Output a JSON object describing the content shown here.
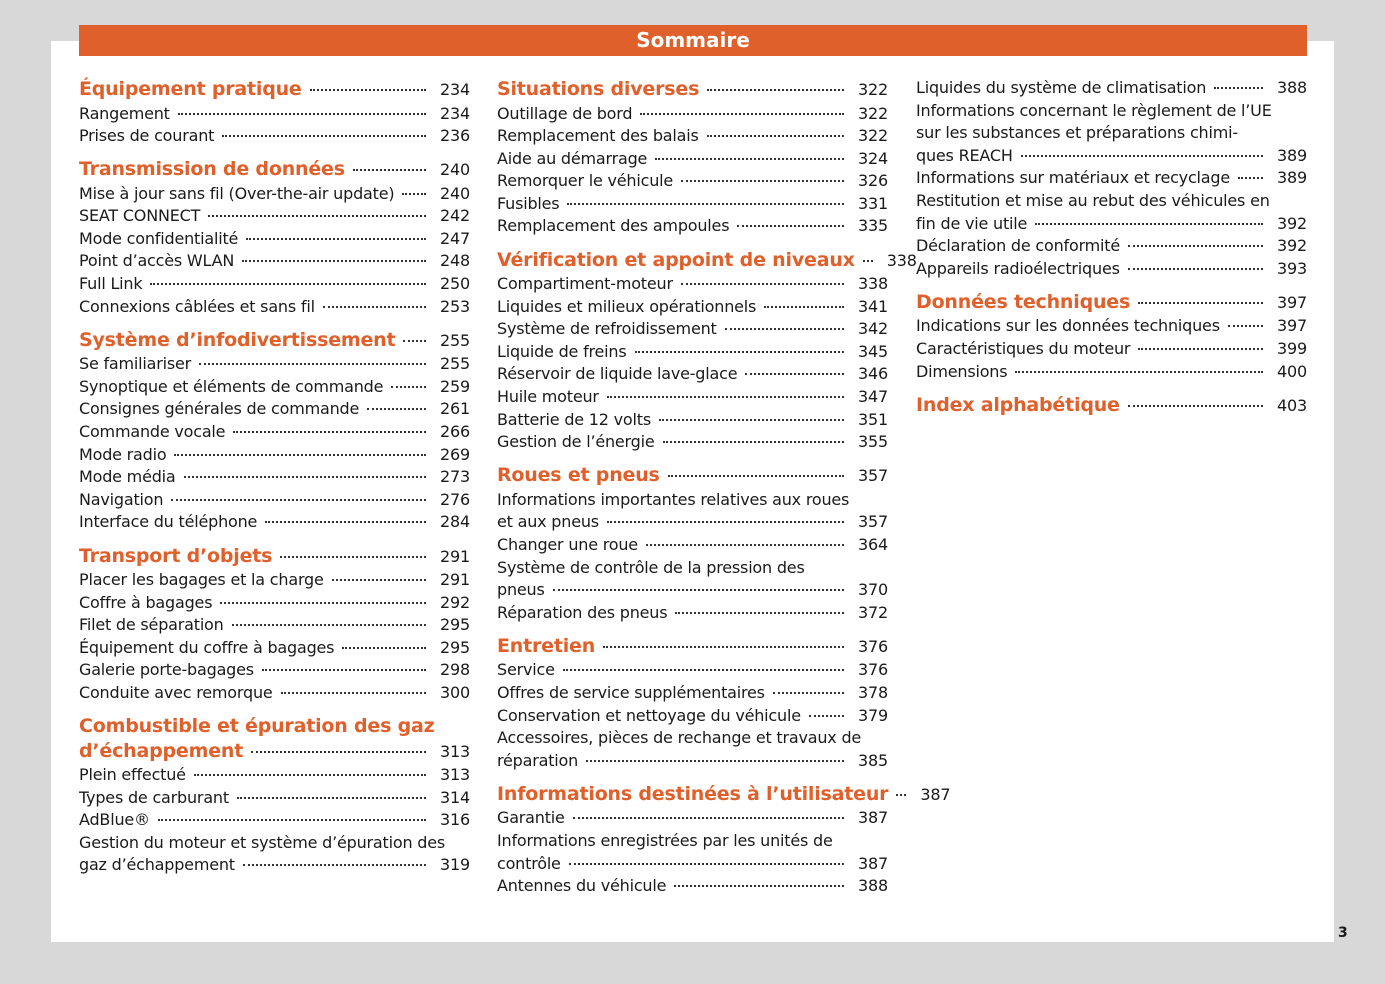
{
  "header": {
    "title": "Sommaire"
  },
  "page_number": "3",
  "colors": {
    "accent": "#e0602b",
    "background": "#d8d8d8"
  },
  "columns": [
    [
      {
        "heading": true,
        "lines": [
          "Équipement pratique"
        ],
        "page": "234"
      },
      {
        "lines": [
          "Rangement"
        ],
        "page": "234"
      },
      {
        "lines": [
          "Prises de courant"
        ],
        "page": "236"
      },
      {
        "heading": true,
        "lines": [
          "Transmission de données"
        ],
        "page": "240"
      },
      {
        "lines": [
          "Mise à jour sans fil (Over-the-air update)"
        ],
        "page": "240"
      },
      {
        "lines": [
          "SEAT CONNECT"
        ],
        "page": "242"
      },
      {
        "lines": [
          "Mode confidentialité"
        ],
        "page": "247"
      },
      {
        "lines": [
          "Point d’accès WLAN"
        ],
        "page": "248"
      },
      {
        "lines": [
          "Full Link"
        ],
        "page": "250"
      },
      {
        "lines": [
          "Connexions câblées et sans fil"
        ],
        "page": "253"
      },
      {
        "heading": true,
        "lines": [
          "Système d’infodivertissement"
        ],
        "page": "255"
      },
      {
        "lines": [
          "Se familiariser"
        ],
        "page": "255"
      },
      {
        "lines": [
          "Synoptique et éléments de commande"
        ],
        "page": "259"
      },
      {
        "lines": [
          "Consignes générales de commande"
        ],
        "page": "261"
      },
      {
        "lines": [
          "Commande vocale"
        ],
        "page": "266"
      },
      {
        "lines": [
          "Mode radio"
        ],
        "page": "269"
      },
      {
        "lines": [
          "Mode média"
        ],
        "page": "273"
      },
      {
        "lines": [
          "Navigation"
        ],
        "page": "276"
      },
      {
        "lines": [
          "Interface du téléphone"
        ],
        "page": "284"
      },
      {
        "heading": true,
        "lines": [
          "Transport d’objets"
        ],
        "page": "291"
      },
      {
        "lines": [
          "Placer les bagages et la charge"
        ],
        "page": "291"
      },
      {
        "lines": [
          "Coffre à bagages"
        ],
        "page": "292"
      },
      {
        "lines": [
          "Filet de séparation"
        ],
        "page": "295"
      },
      {
        "lines": [
          "Équipement du coffre à bagages"
        ],
        "page": "295"
      },
      {
        "lines": [
          "Galerie porte-bagages"
        ],
        "page": "298"
      },
      {
        "lines": [
          "Conduite avec remorque"
        ],
        "page": "300"
      },
      {
        "heading": true,
        "lines": [
          "Combustible et épuration des gaz",
          "d’échappement"
        ],
        "page": "313"
      },
      {
        "lines": [
          "Plein effectué"
        ],
        "page": "313"
      },
      {
        "lines": [
          "Types de carburant"
        ],
        "page": "314"
      },
      {
        "lines": [
          "AdBlue®"
        ],
        "page": "316"
      },
      {
        "lines": [
          "Gestion du moteur et système d’épuration des",
          "gaz d’échappement"
        ],
        "page": "319"
      }
    ],
    [
      {
        "heading": true,
        "lines": [
          "Situations diverses"
        ],
        "page": "322"
      },
      {
        "lines": [
          "Outillage de bord"
        ],
        "page": "322"
      },
      {
        "lines": [
          "Remplacement des balais"
        ],
        "page": "322"
      },
      {
        "lines": [
          "Aide au démarrage"
        ],
        "page": "324"
      },
      {
        "lines": [
          "Remorquer le véhicule"
        ],
        "page": "326"
      },
      {
        "lines": [
          "Fusibles"
        ],
        "page": "331"
      },
      {
        "lines": [
          "Remplacement des ampoules"
        ],
        "page": "335"
      },
      {
        "heading": true,
        "lines": [
          "Vérification et appoint de niveaux"
        ],
        "page": "338"
      },
      {
        "lines": [
          "Compartiment-moteur"
        ],
        "page": "338"
      },
      {
        "lines": [
          "Liquides et milieux opérationnels"
        ],
        "page": "341"
      },
      {
        "lines": [
          "Système de refroidissement"
        ],
        "page": "342"
      },
      {
        "lines": [
          "Liquide de freins"
        ],
        "page": "345"
      },
      {
        "lines": [
          "Réservoir de liquide lave-glace"
        ],
        "page": "346"
      },
      {
        "lines": [
          "Huile moteur"
        ],
        "page": "347"
      },
      {
        "lines": [
          "Batterie de 12 volts"
        ],
        "page": "351"
      },
      {
        "lines": [
          "Gestion de l’énergie"
        ],
        "page": "355"
      },
      {
        "heading": true,
        "lines": [
          "Roues et pneus"
        ],
        "page": "357"
      },
      {
        "lines": [
          "Informations importantes relatives aux roues",
          "et aux pneus"
        ],
        "page": "357"
      },
      {
        "lines": [
          "Changer une roue"
        ],
        "page": "364"
      },
      {
        "lines": [
          "Système de contrôle de la pression des",
          "pneus"
        ],
        "page": "370"
      },
      {
        "lines": [
          "Réparation des pneus"
        ],
        "page": "372"
      },
      {
        "heading": true,
        "lines": [
          "Entretien"
        ],
        "page": "376"
      },
      {
        "lines": [
          "Service"
        ],
        "page": "376"
      },
      {
        "lines": [
          "Offres de service supplémentaires"
        ],
        "page": "378"
      },
      {
        "lines": [
          "Conservation et nettoyage du véhicule"
        ],
        "page": "379"
      },
      {
        "lines": [
          "Accessoires, pièces de rechange et travaux de",
          "réparation"
        ],
        "page": "385"
      },
      {
        "heading": true,
        "lines": [
          "Informations destinées à l’utilisateur"
        ],
        "page": "387"
      },
      {
        "lines": [
          "Garantie"
        ],
        "page": "387"
      },
      {
        "lines": [
          "Informations enregistrées par les unités de",
          "contrôle"
        ],
        "page": "387"
      },
      {
        "lines": [
          "Antennes du véhicule"
        ],
        "page": "388"
      }
    ],
    [
      {
        "lines": [
          "Liquides du système de climatisation"
        ],
        "page": "388"
      },
      {
        "lines": [
          "Informations concernant le règlement de l’UE",
          "sur les substances et préparations chimi-",
          "ques REACH"
        ],
        "page": "389"
      },
      {
        "lines": [
          "Informations sur matériaux et recyclage"
        ],
        "page": "389"
      },
      {
        "lines": [
          "Restitution et mise au rebut des véhicules en",
          "fin de vie utile"
        ],
        "page": "392"
      },
      {
        "lines": [
          "Déclaration de conformité"
        ],
        "page": "392"
      },
      {
        "lines": [
          "Appareils radioélectriques"
        ],
        "page": "393"
      },
      {
        "heading": true,
        "lines": [
          "Données techniques"
        ],
        "page": "397"
      },
      {
        "lines": [
          "Indications sur les données techniques"
        ],
        "page": "397"
      },
      {
        "lines": [
          "Caractéristiques du moteur"
        ],
        "page": "399"
      },
      {
        "lines": [
          "Dimensions"
        ],
        "page": "400"
      },
      {
        "heading": true,
        "lines": [
          "Index alphabétique"
        ],
        "page": "403"
      }
    ]
  ]
}
